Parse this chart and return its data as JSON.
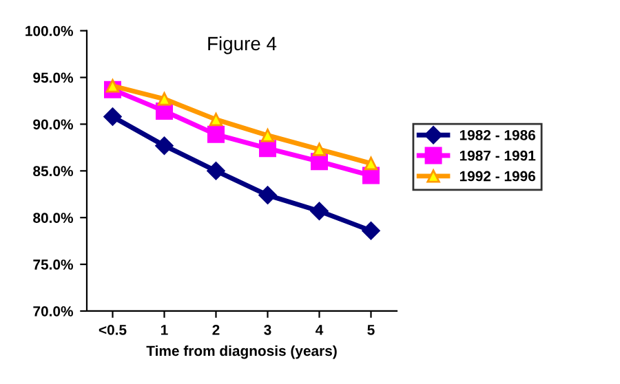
{
  "chart_data": {
    "type": "line",
    "title": "Figure 4",
    "xlabel": "Time from diagnosis (years)",
    "categories": [
      "<0.5",
      "1",
      "2",
      "3",
      "4",
      "5"
    ],
    "series": [
      {
        "name": "1982 - 1986",
        "color": "#000080",
        "marker": "diamond",
        "values": [
          90.8,
          87.7,
          85.0,
          82.4,
          80.7,
          78.6
        ]
      },
      {
        "name": "1987 - 1991",
        "color": "#ff00ff",
        "marker": "square",
        "values": [
          93.7,
          91.4,
          88.9,
          87.4,
          86.0,
          84.5
        ]
      },
      {
        "name": "1992 - 1996",
        "color": "#ff9900",
        "marker": "triangle",
        "values": [
          94.1,
          92.7,
          90.5,
          88.8,
          87.3,
          85.8
        ]
      }
    ],
    "ylim": [
      70,
      100
    ],
    "yticks": [
      {
        "value": 70,
        "label": "70.0%"
      },
      {
        "value": 75,
        "label": "75.0%"
      },
      {
        "value": 80,
        "label": "80.0%"
      },
      {
        "value": 85,
        "label": "85.0%"
      },
      {
        "value": 90,
        "label": "90.0%"
      },
      {
        "value": 95,
        "label": "95.0%"
      },
      {
        "value": 100,
        "label": "100.0%"
      }
    ],
    "grid": false,
    "legend": "right",
    "line_style": "solid"
  }
}
